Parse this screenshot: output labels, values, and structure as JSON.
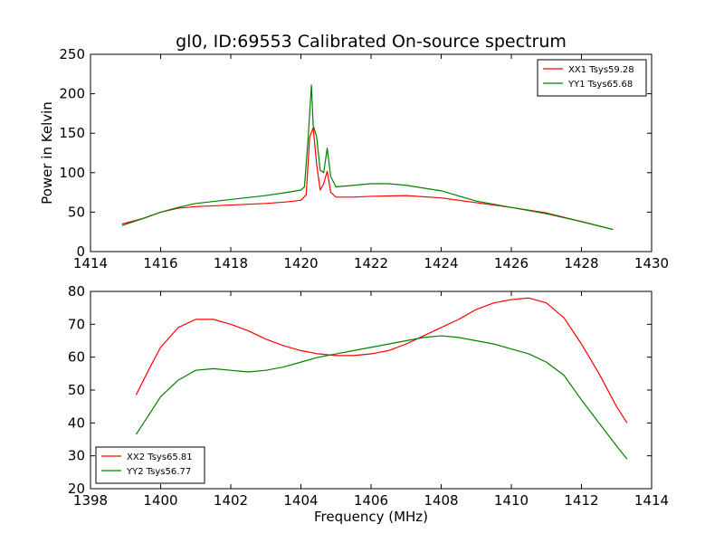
{
  "chart_data": [
    {
      "type": "line",
      "title": "gl0, ID:69553 Calibrated On-source spectrum",
      "xlabel": "",
      "ylabel": "Power in Kelvin",
      "xlim": [
        1414,
        1430
      ],
      "ylim": [
        0,
        250
      ],
      "xticks": [
        "1414",
        "1416",
        "1418",
        "1420",
        "1422",
        "1424",
        "1426",
        "1428",
        "1430"
      ],
      "yticks": [
        "0",
        "50",
        "100",
        "150",
        "200",
        "250"
      ],
      "grid": false,
      "legend_position": "top-right",
      "series": [
        {
          "name": "XX1 Tsys59.28",
          "color": "#ff0000",
          "x": [
            1414.9,
            1415.5,
            1416.0,
            1416.5,
            1417.0,
            1418.0,
            1419.0,
            1419.6,
            1420.0,
            1420.15,
            1420.25,
            1420.35,
            1420.45,
            1420.55,
            1420.65,
            1420.75,
            1420.85,
            1421.0,
            1421.5,
            1422.0,
            1423.0,
            1424.0,
            1425.0,
            1426.0,
            1427.0,
            1428.0,
            1428.9
          ],
          "values": [
            35,
            42,
            50,
            55,
            57,
            59,
            61,
            63,
            65,
            72,
            145,
            157,
            110,
            78,
            86,
            102,
            75,
            69,
            69,
            70,
            71,
            68,
            62,
            56,
            49,
            38,
            28
          ]
        },
        {
          "name": "YY1 Tsys65.68",
          "color": "#008000",
          "x": [
            1414.9,
            1415.5,
            1416.0,
            1416.5,
            1417.0,
            1418.0,
            1419.0,
            1419.6,
            1420.0,
            1420.1,
            1420.2,
            1420.3,
            1420.35,
            1420.45,
            1420.55,
            1420.65,
            1420.75,
            1420.85,
            1421.0,
            1421.5,
            1422.0,
            1422.5,
            1423.0,
            1424.0,
            1425.0,
            1426.0,
            1427.0,
            1428.0,
            1428.9
          ],
          "values": [
            33,
            42,
            50,
            56,
            61,
            66,
            71,
            75,
            78,
            82,
            140,
            211,
            160,
            145,
            103,
            100,
            131,
            95,
            82,
            84,
            86,
            86,
            84,
            77,
            64,
            56,
            48,
            38,
            28
          ]
        }
      ]
    },
    {
      "type": "line",
      "title": "",
      "xlabel": "Frequency (MHz)",
      "ylabel": "",
      "xlim": [
        1398,
        1414
      ],
      "ylim": [
        20,
        80
      ],
      "xticks": [
        "1398",
        "1400",
        "1402",
        "1404",
        "1406",
        "1408",
        "1410",
        "1412",
        "1414"
      ],
      "yticks": [
        "20",
        "30",
        "40",
        "50",
        "60",
        "70",
        "80"
      ],
      "grid": false,
      "legend_position": "bottom-left",
      "series": [
        {
          "name": "XX2 Tsys65.81",
          "color": "#ff0000",
          "x": [
            1399.3,
            1399.7,
            1400.0,
            1400.5,
            1401.0,
            1401.5,
            1402.0,
            1402.5,
            1403.0,
            1403.5,
            1404.0,
            1404.5,
            1405.0,
            1405.5,
            1406.0,
            1406.5,
            1407.0,
            1407.5,
            1408.0,
            1408.5,
            1409.0,
            1409.5,
            1410.0,
            1410.5,
            1411.0,
            1411.5,
            1412.0,
            1412.5,
            1413.0,
            1413.3
          ],
          "values": [
            48.5,
            57,
            63,
            69,
            71.5,
            71.5,
            70,
            68,
            65.5,
            63.5,
            62,
            61,
            60.5,
            60.5,
            61,
            62,
            64,
            66.5,
            69,
            71.5,
            74.5,
            76.5,
            77.5,
            78,
            76.5,
            72,
            64,
            55,
            45,
            40
          ]
        },
        {
          "name": "YY2 Tsys56.77",
          "color": "#008000",
          "x": [
            1399.3,
            1399.7,
            1400.0,
            1400.5,
            1401.0,
            1401.5,
            1402.0,
            1402.5,
            1403.0,
            1403.5,
            1404.0,
            1404.5,
            1405.0,
            1405.5,
            1406.0,
            1406.5,
            1407.0,
            1407.5,
            1408.0,
            1408.5,
            1409.0,
            1409.5,
            1410.0,
            1410.5,
            1411.0,
            1411.5,
            1412.0,
            1412.5,
            1413.0,
            1413.3
          ],
          "values": [
            36.5,
            43,
            48,
            53,
            56,
            56.5,
            56,
            55.5,
            56,
            57,
            58.5,
            60,
            61,
            62,
            63,
            64,
            65,
            66,
            66.5,
            66,
            65,
            64,
            62.5,
            61,
            58.5,
            54.5,
            47,
            40,
            33,
            29
          ]
        }
      ]
    }
  ]
}
